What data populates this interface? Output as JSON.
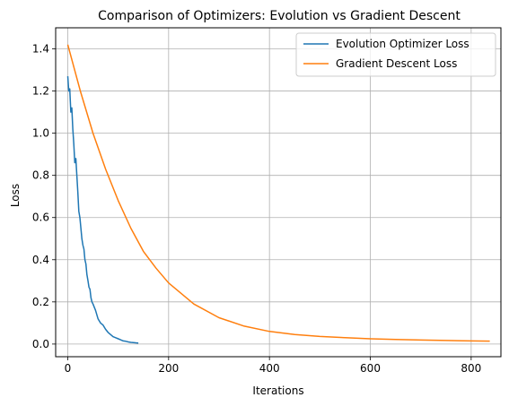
{
  "chart_data": {
    "type": "line",
    "title": "Comparison of Optimizers: Evolution vs Gradient Descent",
    "xlabel": "Iterations",
    "ylabel": "Loss",
    "xlim": [
      -24,
      859
    ],
    "ylim": [
      -0.06,
      1.5
    ],
    "xticks": [
      0,
      200,
      400,
      600,
      800
    ],
    "yticks": [
      0.0,
      0.2,
      0.4,
      0.6,
      0.8,
      1.0,
      1.2,
      1.4
    ],
    "grid": true,
    "legend_position": "upper right",
    "series": [
      {
        "name": "Evolution Optimizer Loss",
        "color": "#1f77b4",
        "x": [
          0,
          2,
          4,
          6,
          8,
          10,
          12,
          14,
          16,
          18,
          20,
          22,
          24,
          26,
          28,
          30,
          32,
          34,
          36,
          38,
          40,
          42,
          44,
          46,
          48,
          50,
          55,
          60,
          65,
          70,
          75,
          80,
          85,
          90,
          95,
          100,
          105,
          110,
          115,
          120,
          125,
          130,
          135,
          140
        ],
        "y": [
          1.27,
          1.2,
          1.21,
          1.1,
          1.12,
          1.02,
          0.95,
          0.86,
          0.88,
          0.8,
          0.72,
          0.63,
          0.6,
          0.55,
          0.5,
          0.47,
          0.45,
          0.4,
          0.38,
          0.33,
          0.3,
          0.27,
          0.26,
          0.22,
          0.2,
          0.19,
          0.16,
          0.12,
          0.1,
          0.09,
          0.07,
          0.055,
          0.045,
          0.035,
          0.03,
          0.025,
          0.02,
          0.015,
          0.013,
          0.01,
          0.008,
          0.007,
          0.006,
          0.005
        ]
      },
      {
        "name": "Gradient Descent Loss",
        "color": "#ff7f0e",
        "x": [
          0,
          25,
          50,
          75,
          100,
          125,
          150,
          175,
          200,
          250,
          300,
          350,
          400,
          450,
          500,
          550,
          600,
          650,
          700,
          750,
          800,
          837
        ],
        "y": [
          1.42,
          1.2,
          1.0,
          0.83,
          0.68,
          0.55,
          0.44,
          0.36,
          0.29,
          0.19,
          0.125,
          0.085,
          0.06,
          0.045,
          0.036,
          0.03,
          0.025,
          0.022,
          0.019,
          0.017,
          0.015,
          0.014
        ]
      }
    ]
  }
}
